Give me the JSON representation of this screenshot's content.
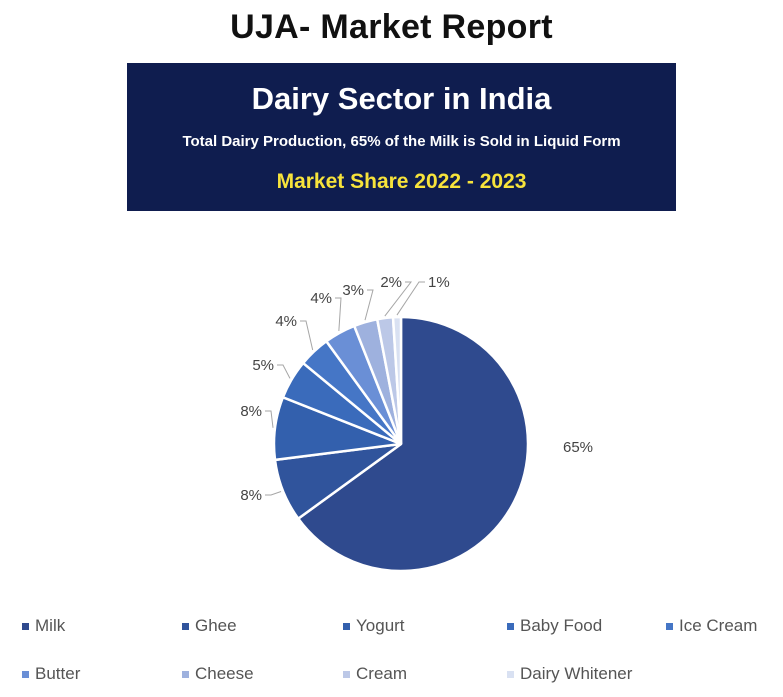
{
  "header": {
    "report_title": "UJA- Market Report",
    "banner_title": "Dairy Sector in India",
    "banner_subtitle": "Total Dairy Production, 65% of the Milk is Sold in Liquid Form",
    "banner_period": "Market Share 2022 - 2023"
  },
  "colors": {
    "banner_background": "#0f1d4f",
    "period_text": "#f7e33b",
    "slice_colors": [
      "#2f4a8e",
      "#30549c",
      "#3360ad",
      "#3a6bbb",
      "#4576c6",
      "#6a8fd6",
      "#9eb1de",
      "#bcc8e7",
      "#d9e1f2"
    ]
  },
  "chart_data": {
    "type": "pie",
    "title": "",
    "categories": [
      "Milk",
      "Ghee",
      "Yogurt",
      "Baby Food",
      "Ice Cream",
      "Butter",
      "Cheese",
      "Cream",
      "Dairy Whitener"
    ],
    "values": [
      65,
      8,
      8,
      5,
      4,
      4,
      3,
      2,
      1
    ],
    "value_labels": [
      "65%",
      "8%",
      "8%",
      "5%",
      "4%",
      "4%",
      "3%",
      "2%",
      "1%"
    ],
    "legend_position": "bottom"
  }
}
